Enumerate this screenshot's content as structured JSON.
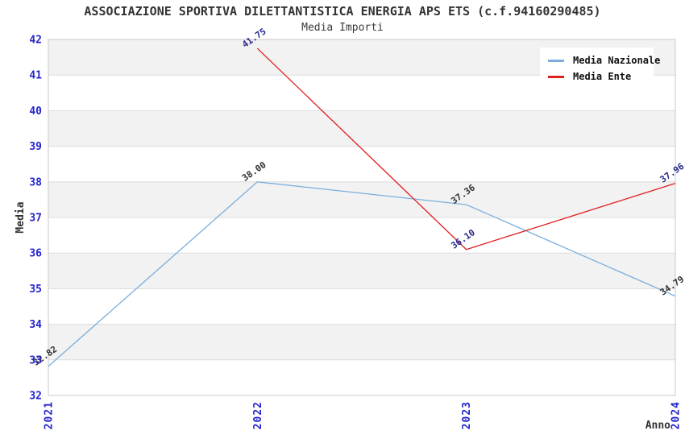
{
  "header": {
    "title": "ASSOCIAZIONE SPORTIVA DILETTANTISTICA ENERGIA APS ETS (c.f.94160290485)",
    "subtitle": "Media Importi"
  },
  "legend": {
    "items": [
      {
        "label": "Media Nazionale",
        "color": "#7aaede"
      },
      {
        "label": "Media Ente",
        "color": "#e01f1f"
      }
    ]
  },
  "chart_data": {
    "type": "line",
    "title": "Media Importi",
    "xlabel": "Anno",
    "ylabel": "Media",
    "x": [
      "2021",
      "2022",
      "2023",
      "2024"
    ],
    "series": [
      {
        "name": "Media Nazionale",
        "color": "#7aaede",
        "label_color": "#333333",
        "values": [
          32.82,
          38.0,
          37.36,
          34.79
        ]
      },
      {
        "name": "Media Ente",
        "color": "#e01f1f",
        "label_color": "#2a2a8c",
        "values": [
          null,
          41.75,
          36.1,
          37.96
        ]
      }
    ],
    "ylim": [
      32,
      42
    ],
    "yticks": [
      32,
      33,
      34,
      35,
      36,
      37,
      38,
      39,
      40,
      41,
      42
    ],
    "grid": "horizontal",
    "banded_background": true,
    "legend_position": "top-right",
    "colors": {
      "tick_label": "#2424cc",
      "band": "#f2f2f2",
      "grid_line": "#dcdcdc",
      "plot_border": "#c8c8c8"
    }
  }
}
